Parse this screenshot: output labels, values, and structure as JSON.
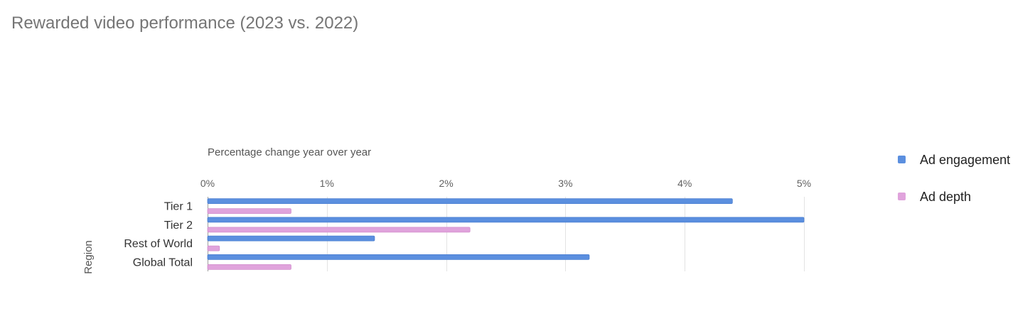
{
  "chart_data": {
    "type": "bar",
    "orientation": "horizontal",
    "title": "Rewarded video performance (2023 vs. 2022)",
    "xlabel": "Percentage change year over year",
    "ylabel": "Region",
    "categories": [
      "Tier 1",
      "Tier 2",
      "Rest of World",
      "Global Total"
    ],
    "series": [
      {
        "name": "Ad engagement",
        "color": "#5b8fdf",
        "values": [
          4.4,
          5.0,
          1.4,
          3.2
        ]
      },
      {
        "name": "Ad depth",
        "color": "#e0a3dc",
        "values": [
          0.7,
          2.2,
          0.1,
          0.7
        ]
      }
    ],
    "xlim": [
      0,
      5
    ],
    "xticks": [
      0,
      1,
      2,
      3,
      4,
      5
    ],
    "xtick_labels": [
      "0%",
      "1%",
      "2%",
      "3%",
      "4%",
      "5%"
    ],
    "grid": true,
    "legend_position": "right"
  }
}
